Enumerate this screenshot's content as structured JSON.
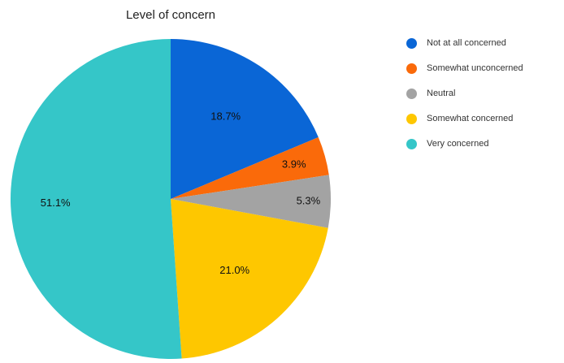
{
  "chart_data": {
    "type": "pie",
    "title": "Level of concern",
    "categories": [
      "Not at all concerned",
      "Somewhat unconcerned",
      "Neutral",
      "Somewhat concerned",
      "Very concerned"
    ],
    "values": [
      18.7,
      3.9,
      5.3,
      21.0,
      51.1
    ],
    "data_labels": [
      "18.7%",
      "3.9%",
      "5.3%",
      "21.0%",
      "51.1%"
    ],
    "colors": [
      "#0a66d6",
      "#fa6a0a",
      "#a3a3a3",
      "#fec700",
      "#35c6c8"
    ],
    "legend_position": "right"
  }
}
